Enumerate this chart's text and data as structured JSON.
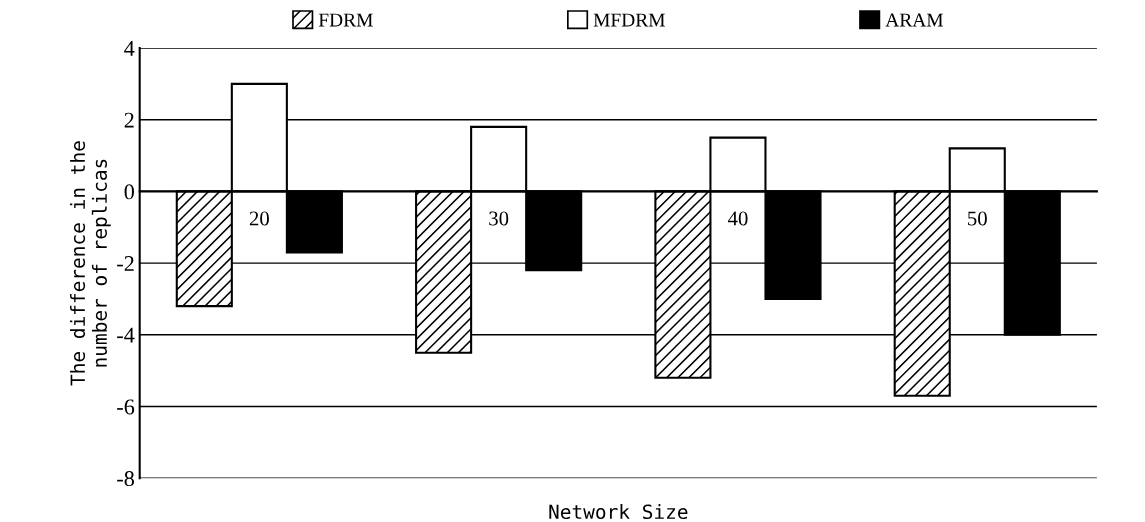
{
  "chart_data": {
    "type": "bar",
    "xlabel": "Network Size",
    "ylabel": "The difference in the\nnumber of replicas",
    "categories": [
      "20",
      "30",
      "40",
      "50"
    ],
    "series": [
      {
        "name": "FDRM",
        "color": "#000000",
        "values": [
          -3.2,
          -4.5,
          -5.2,
          -5.7
        ]
      },
      {
        "name": "MFDRM",
        "color": "#ffffff",
        "values": [
          3.0,
          1.8,
          1.5,
          1.2
        ]
      },
      {
        "name": "ARAM",
        "color": "#000000",
        "values": [
          -1.7,
          -2.2,
          -3.0,
          -4.0
        ]
      }
    ],
    "ylim": [
      -8,
      4
    ],
    "yticks": [
      -8,
      -6,
      -4,
      -2,
      0,
      2,
      4
    ],
    "grid": "y",
    "legend": "top"
  }
}
